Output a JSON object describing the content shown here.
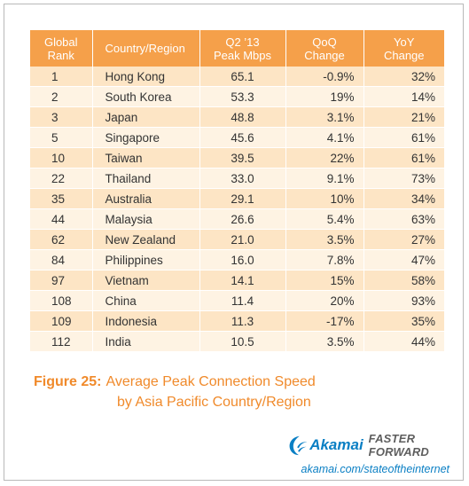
{
  "table": {
    "headers": {
      "rank": [
        "Global",
        "Rank"
      ],
      "country": "Country/Region",
      "peak": [
        "Q2 ’13",
        "Peak Mbps"
      ],
      "qoq": [
        "QoQ",
        "Change"
      ],
      "yoy": [
        "YoY",
        "Change"
      ]
    },
    "rows": [
      {
        "rank": "1",
        "country": "Hong Kong",
        "peak": "65.1",
        "qoq": "-0.9%",
        "yoy": "32%"
      },
      {
        "rank": "2",
        "country": "South Korea",
        "peak": "53.3",
        "qoq": "19%",
        "yoy": "14%"
      },
      {
        "rank": "3",
        "country": "Japan",
        "peak": "48.8",
        "qoq": "3.1%",
        "yoy": "21%"
      },
      {
        "rank": "5",
        "country": "Singapore",
        "peak": "45.6",
        "qoq": "4.1%",
        "yoy": "61%"
      },
      {
        "rank": "10",
        "country": "Taiwan",
        "peak": "39.5",
        "qoq": "22%",
        "yoy": "61%"
      },
      {
        "rank": "22",
        "country": "Thailand",
        "peak": "33.0",
        "qoq": "9.1%",
        "yoy": "73%"
      },
      {
        "rank": "35",
        "country": "Australia",
        "peak": "29.1",
        "qoq": "10%",
        "yoy": "34%"
      },
      {
        "rank": "44",
        "country": "Malaysia",
        "peak": "26.6",
        "qoq": "5.4%",
        "yoy": "63%"
      },
      {
        "rank": "62",
        "country": "New Zealand",
        "peak": "21.0",
        "qoq": "3.5%",
        "yoy": "27%"
      },
      {
        "rank": "84",
        "country": "Philippines",
        "peak": "16.0",
        "qoq": "7.8%",
        "yoy": "47%"
      },
      {
        "rank": "97",
        "country": "Vietnam",
        "peak": "14.1",
        "qoq": "15%",
        "yoy": "58%"
      },
      {
        "rank": "108",
        "country": "China",
        "peak": "11.4",
        "qoq": "20%",
        "yoy": "93%"
      },
      {
        "rank": "109",
        "country": "Indonesia",
        "peak": "11.3",
        "qoq": "-17%",
        "yoy": "35%"
      },
      {
        "rank": "112",
        "country": "India",
        "peak": "10.5",
        "qoq": "3.5%",
        "yoy": "44%"
      }
    ]
  },
  "caption": {
    "label": "Figure 25:",
    "line1": "Average Peak Connection Speed",
    "line2": "by Asia Pacific Country/Region"
  },
  "branding": {
    "logo_icon": "akamai-wave-icon",
    "brand": "Akamai",
    "tagline": "FASTER FORWARD",
    "url": "akamai.com/stateoftheinternet",
    "brand_color": "#0a7fc4"
  },
  "colors": {
    "header_bg": "#f5a04a",
    "row_odd": "#fde5c5",
    "row_even": "#fef3e3",
    "caption": "#f08a2b"
  }
}
